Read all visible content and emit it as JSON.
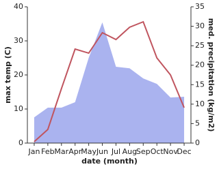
{
  "chart_data": {
    "type": "line",
    "x_label": "date (month)",
    "y_label": "max temp (C)",
    "y2_label": "med. precipitation (kg/m2)",
    "categories": [
      "Jan",
      "Feb",
      "Mar",
      "Apr",
      "May",
      "Jun",
      "Jul",
      "Aug",
      "Sep",
      "Oct",
      "Nov",
      "Dec"
    ],
    "ylim": [
      0,
      40
    ],
    "yticks": [
      0,
      10,
      20,
      30,
      40
    ],
    "y2lim": [
      0,
      35
    ],
    "y2ticks": [
      0,
      5,
      10,
      15,
      20,
      25,
      30,
      35
    ],
    "series": [
      {
        "name": "med. precipitation (kg/m2)",
        "kind": "area",
        "axis": "y2",
        "color": "#aab3ef",
        "values": [
          6.6,
          9.1,
          9.1,
          10.5,
          21.9,
          31,
          19.6,
          19.2,
          16.6,
          15.2,
          11.7,
          11.9
        ]
      },
      {
        "name": "max temp (C)",
        "kind": "line",
        "color": "#c0555f",
        "values": [
          0.4,
          4,
          16,
          27.6,
          26.4,
          32.4,
          30.4,
          34,
          35.6,
          25,
          20,
          10.4
        ]
      }
    ]
  }
}
